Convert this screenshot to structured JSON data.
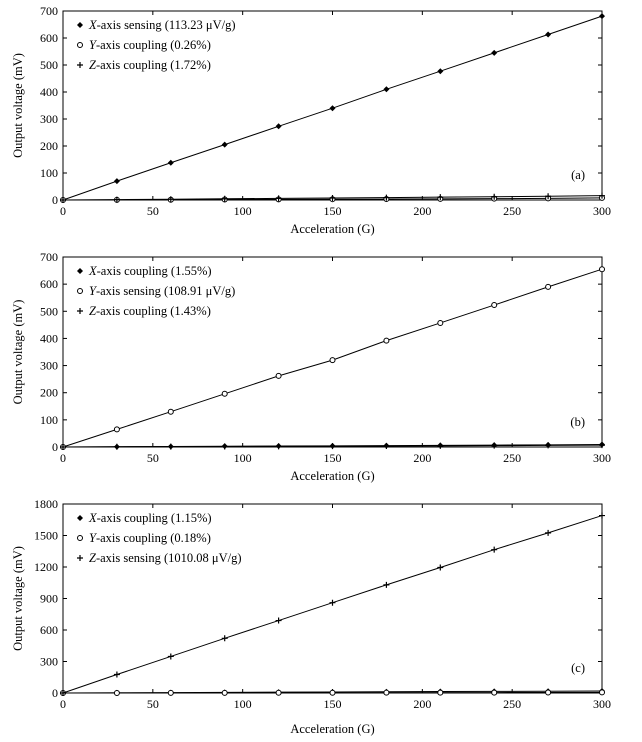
{
  "chart_data": [
    {
      "type": "line",
      "panel_tag": "(a)",
      "xlabel": "Acceleration (G)",
      "ylabel": "Output voltage (mV)",
      "xlim": [
        0,
        300
      ],
      "ylim": [
        0,
        700
      ],
      "xticks": [
        0,
        50,
        100,
        150,
        200,
        250,
        300
      ],
      "yticks": [
        0,
        100,
        200,
        300,
        400,
        500,
        600,
        700
      ],
      "grid": false,
      "legend": "top-left",
      "x": [
        0,
        30,
        60,
        90,
        120,
        150,
        180,
        210,
        240,
        270,
        300
      ],
      "series": [
        {
          "axis": "X",
          "rest": "-axis sensing (113.23 μV/g)",
          "marker": "diamond",
          "values": [
            0,
            70,
            138,
            205,
            273,
            340,
            410,
            477,
            545,
            613,
            681
          ]
        },
        {
          "axis": "Y",
          "rest": "-axis coupling (0.26%)",
          "marker": "circle",
          "values": [
            0,
            0.5,
            1,
            2,
            2.5,
            3,
            3.5,
            4,
            5,
            6,
            8
          ]
        },
        {
          "axis": "Z",
          "rest": "-axis coupling (1.72%)",
          "marker": "plus",
          "values": [
            0,
            1.5,
            3,
            4.5,
            6,
            7.5,
            9,
            10.5,
            12,
            14,
            16
          ]
        }
      ]
    },
    {
      "type": "line",
      "panel_tag": "(b)",
      "xlabel": "Acceleration (G)",
      "ylabel": "Output voltage (mV)",
      "xlim": [
        0,
        300
      ],
      "ylim": [
        0,
        700
      ],
      "xticks": [
        0,
        50,
        100,
        150,
        200,
        250,
        300
      ],
      "yticks": [
        0,
        100,
        200,
        300,
        400,
        500,
        600,
        700
      ],
      "grid": false,
      "legend": "top-left",
      "x": [
        0,
        30,
        60,
        90,
        120,
        150,
        180,
        210,
        240,
        270,
        300
      ],
      "series": [
        {
          "axis": "X",
          "rest": "-axis coupling (1.55%)",
          "marker": "diamond",
          "values": [
            0,
            1,
            2,
            3,
            3.5,
            4,
            5,
            6,
            7,
            8,
            9
          ]
        },
        {
          "axis": "Y",
          "rest": "-axis sensing (108.91 μV/g)",
          "marker": "circle",
          "values": [
            0,
            65,
            130,
            196,
            262,
            320,
            392,
            457,
            523,
            590,
            655
          ]
        },
        {
          "axis": "Z",
          "rest": "-axis coupling (1.43%)",
          "marker": "plus",
          "values": [
            0,
            1,
            1.5,
            2,
            2.5,
            3,
            3.5,
            4,
            5,
            6,
            7
          ]
        }
      ]
    },
    {
      "type": "line",
      "panel_tag": "(c)",
      "xlabel": "Acceleration (G)",
      "ylabel": "Output voltage (mV)",
      "xlim": [
        0,
        300
      ],
      "ylim": [
        0,
        1800
      ],
      "xticks": [
        0,
        50,
        100,
        150,
        200,
        250,
        300
      ],
      "yticks": [
        0,
        300,
        600,
        900,
        1200,
        1500,
        1800
      ],
      "grid": false,
      "legend": "top-left",
      "x": [
        0,
        30,
        60,
        90,
        120,
        150,
        180,
        210,
        240,
        270,
        300
      ],
      "series": [
        {
          "axis": "X",
          "rest": "-axis coupling (1.15%)",
          "marker": "diamond",
          "values": [
            0,
            2,
            4,
            6,
            8,
            10,
            12,
            14,
            15,
            17,
            19
          ]
        },
        {
          "axis": "Y",
          "rest": "-axis coupling (0.18%)",
          "marker": "circle",
          "values": [
            0,
            0.5,
            1,
            1.5,
            2,
            2.5,
            3,
            3.5,
            4,
            5,
            6
          ]
        },
        {
          "axis": "Z",
          "rest": "-axis sensing (1010.08 μV/g)",
          "marker": "plus",
          "values": [
            0,
            176,
            348,
            521,
            690,
            860,
            1030,
            1195,
            1365,
            1525,
            1690
          ]
        }
      ]
    }
  ]
}
